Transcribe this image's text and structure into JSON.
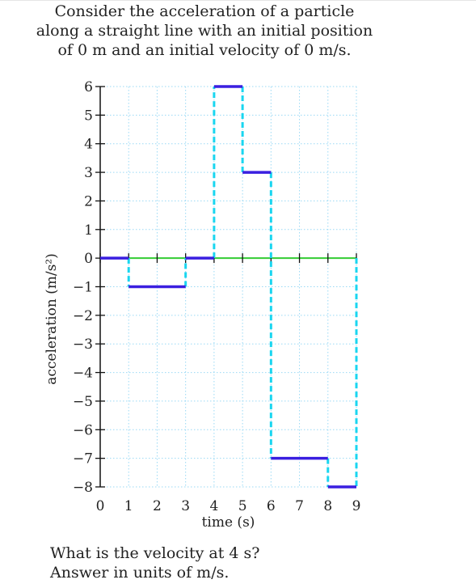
{
  "problem": {
    "intro": "Consider the acceleration of a particle along a straight line with an initial position of 0 m and an initial velocity of 0 m/s.",
    "question_line1": "What is the velocity at 4 s?",
    "question_line2": "Answer in units of  m/s."
  },
  "chart_data": {
    "type": "line",
    "step": true,
    "xlabel": "time (s)",
    "ylabel": "acceleration (m/s²)",
    "xlim": [
      0,
      9
    ],
    "ylim": [
      -8,
      6
    ],
    "xticks": [
      0,
      1,
      2,
      3,
      4,
      5,
      6,
      7,
      8,
      9
    ],
    "yticks": [
      6,
      5,
      4,
      3,
      2,
      1,
      0,
      -1,
      -2,
      -3,
      -4,
      -5,
      -6,
      -7,
      -8
    ],
    "ytick_labels": [
      "6",
      "5",
      "4",
      "3",
      "2",
      "1",
      "0",
      "−1",
      "−2",
      "−3",
      "−4",
      "−5",
      "−6",
      "−7",
      "−8"
    ],
    "grid": true,
    "segments": [
      {
        "x0": 0,
        "x1": 1,
        "y": 0
      },
      {
        "x0": 1,
        "x1": 3,
        "y": -1
      },
      {
        "x0": 3,
        "x1": 4,
        "y": 0
      },
      {
        "x0": 4,
        "x1": 5,
        "y": 6
      },
      {
        "x0": 5,
        "x1": 6,
        "y": 3
      },
      {
        "x0": 6,
        "x1": 8,
        "y": -7
      },
      {
        "x0": 8,
        "x1": 9,
        "y": -8
      }
    ],
    "colors": {
      "segment": "#3a1fe0",
      "jump": "#19d6f0",
      "zero_line": "#33cc33",
      "grid": "#9ad9f5",
      "axis": "#111111"
    }
  }
}
